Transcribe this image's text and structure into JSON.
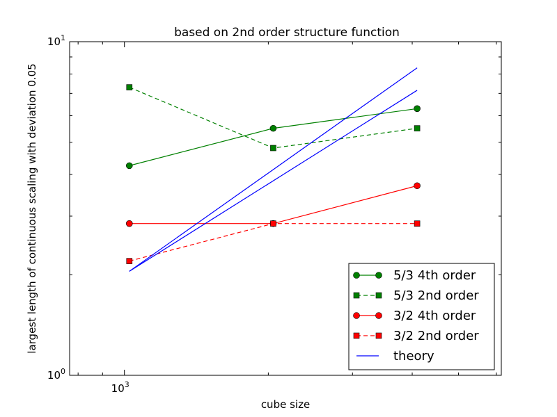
{
  "chart_data": {
    "type": "line",
    "title": "based on 2nd order structure function",
    "xlabel": "cube size",
    "ylabel": "largest length of continuous scaling with deviation 0.05",
    "xscale": "log",
    "yscale": "log",
    "xlim": [
      768,
      6144
    ],
    "ylim": [
      1,
      10
    ],
    "y_tick_labels": [
      {
        "value": 1,
        "base": "10",
        "exp": "0"
      },
      {
        "value": 10,
        "base": "10",
        "exp": "1"
      }
    ],
    "x_tick_labels": [
      {
        "value": 1000,
        "base": "10",
        "exp": "3"
      }
    ],
    "legend_placement": "lower-right",
    "grid": false,
    "series": [
      {
        "name": "5/3 4th order",
        "color": "#008000",
        "marker": "circle",
        "dash": "solid",
        "x": [
          1024,
          2048,
          4096
        ],
        "y": [
          4.25,
          5.5,
          6.3
        ]
      },
      {
        "name": "5/3 2nd order",
        "color": "#008000",
        "marker": "square",
        "dash": "dashed",
        "x": [
          1024,
          2048,
          4096
        ],
        "y": [
          7.3,
          4.8,
          5.5
        ]
      },
      {
        "name": "3/2 4th order",
        "color": "#ff0000",
        "marker": "circle",
        "dash": "solid",
        "x": [
          1024,
          2048,
          4096
        ],
        "y": [
          2.85,
          2.85,
          3.7
        ]
      },
      {
        "name": "3/2 2nd order",
        "color": "#ff0000",
        "marker": "square",
        "dash": "dashed",
        "x": [
          1024,
          2048,
          4096
        ],
        "y": [
          2.2,
          2.85,
          2.85
        ]
      },
      {
        "name": "theory",
        "color": "#0000ff",
        "marker": "none",
        "dash": "solid",
        "lines": [
          {
            "x": [
              1024,
              4096
            ],
            "y": [
              2.05,
              8.35
            ]
          },
          {
            "x": [
              1024,
              4096
            ],
            "y": [
              2.05,
              7.15
            ]
          }
        ]
      }
    ]
  }
}
